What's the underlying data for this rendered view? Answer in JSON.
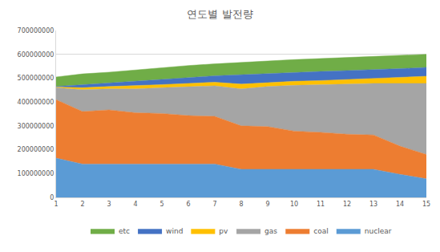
{
  "chart_data": {
    "type": "area",
    "title": "연도별 발전량",
    "stacked": true,
    "grid": true,
    "legend": "bottom",
    "x": [
      1,
      2,
      3,
      4,
      5,
      6,
      7,
      8,
      9,
      10,
      11,
      12,
      13,
      14,
      15
    ],
    "xlim": [
      1,
      15
    ],
    "xticks": [
      1,
      2,
      3,
      4,
      5,
      6,
      7,
      8,
      9,
      10,
      11,
      12,
      13,
      14,
      15
    ],
    "ylim": [
      0,
      700000000
    ],
    "yticks": [
      0,
      100000000,
      200000000,
      300000000,
      400000000,
      500000000,
      600000000,
      700000000
    ],
    "series": [
      {
        "name": "nuclear",
        "color": "#5b9bd5",
        "values": [
          165000000,
          140000000,
          140000000,
          140000000,
          140000000,
          140000000,
          140000000,
          118000000,
          118000000,
          118000000,
          118000000,
          118000000,
          118000000,
          97000000,
          78000000
        ]
      },
      {
        "name": "coal",
        "color": "#ed7d31",
        "values": [
          245000000,
          220000000,
          227000000,
          215000000,
          212000000,
          203000000,
          200000000,
          182000000,
          179000000,
          160000000,
          155000000,
          147000000,
          144000000,
          118000000,
          102000000
        ]
      },
      {
        "name": "gas",
        "color": "#a5a5a5",
        "values": [
          50000000,
          92000000,
          88000000,
          100000000,
          108000000,
          122000000,
          128000000,
          155000000,
          168000000,
          192000000,
          200000000,
          210000000,
          216000000,
          263000000,
          298000000
        ]
      },
      {
        "name": "pv",
        "color": "#ffc000",
        "values": [
          3000000,
          8000000,
          10000000,
          13000000,
          13000000,
          13000000,
          15000000,
          20000000,
          17000000,
          17000000,
          17000000,
          20000000,
          20000000,
          25000000,
          30000000
        ]
      },
      {
        "name": "wind",
        "color": "#4472c4",
        "values": [
          2000000,
          12000000,
          15000000,
          20000000,
          22000000,
          24000000,
          27000000,
          40000000,
          38000000,
          38000000,
          38000000,
          37000000,
          37000000,
          37000000,
          37000000
        ]
      },
      {
        "name": "etc",
        "color": "#70ad47",
        "values": [
          40000000,
          46000000,
          45000000,
          47000000,
          50000000,
          51000000,
          50000000,
          52000000,
          52000000,
          53000000,
          54000000,
          54000000,
          55000000,
          55000000,
          55000000
        ]
      }
    ]
  }
}
